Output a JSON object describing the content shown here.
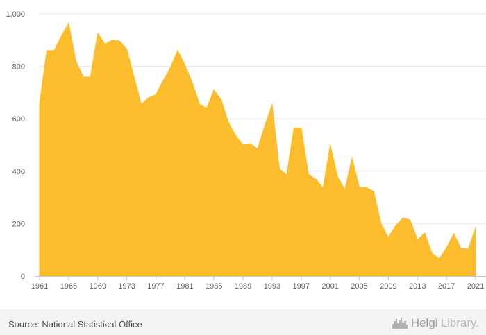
{
  "footer": {
    "source": "Source: National Statistical Office",
    "brand_name": "Helgi",
    "brand_suffix": "Library."
  },
  "chart_data": {
    "type": "area",
    "title": "",
    "xlabel": "",
    "ylabel": "",
    "ylim": [
      0,
      1000
    ],
    "yticks": [
      0,
      200,
      400,
      600,
      800,
      1000
    ],
    "ytick_labels": [
      "0",
      "200",
      "400",
      "600",
      "800",
      "1,000"
    ],
    "xticks": [
      1961,
      1965,
      1969,
      1973,
      1977,
      1981,
      1985,
      1989,
      1993,
      1997,
      2001,
      2005,
      2009,
      2013,
      2017,
      2021
    ],
    "grid": true,
    "fill_color": "#fbbd2e",
    "x": [
      1961,
      1962,
      1963,
      1964,
      1965,
      1966,
      1967,
      1968,
      1969,
      1970,
      1971,
      1972,
      1973,
      1974,
      1975,
      1976,
      1977,
      1978,
      1979,
      1980,
      1981,
      1982,
      1983,
      1984,
      1985,
      1986,
      1987,
      1988,
      1989,
      1990,
      1991,
      1992,
      1993,
      1994,
      1995,
      1996,
      1997,
      1998,
      1999,
      2000,
      2001,
      2002,
      2003,
      2004,
      2005,
      2006,
      2007,
      2008,
      2009,
      2010,
      2011,
      2012,
      2013,
      2014,
      2015,
      2016,
      2017,
      2018,
      2019,
      2020,
      2021
    ],
    "values": [
      660,
      860,
      860,
      915,
      965,
      820,
      760,
      760,
      925,
      885,
      900,
      897,
      865,
      760,
      655,
      680,
      692,
      745,
      795,
      860,
      805,
      740,
      656,
      640,
      710,
      672,
      585,
      535,
      500,
      505,
      485,
      575,
      655,
      410,
      385,
      565,
      565,
      388,
      370,
      335,
      500,
      380,
      330,
      450,
      338,
      338,
      322,
      198,
      148,
      192,
      222,
      214,
      138,
      165,
      87,
      66,
      108,
      162,
      105,
      104,
      185
    ]
  }
}
